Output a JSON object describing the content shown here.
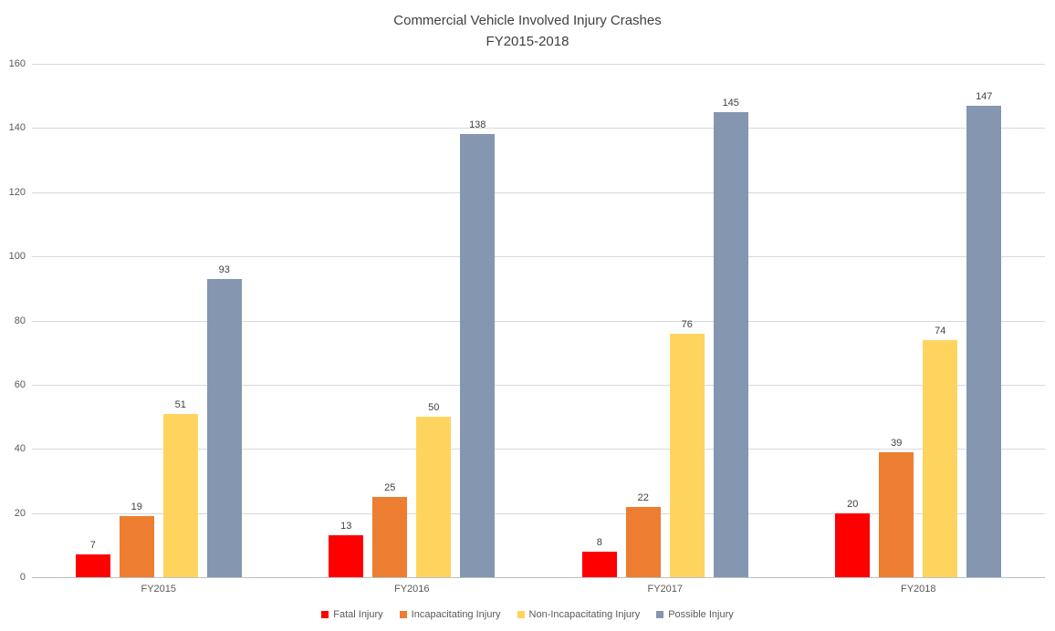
{
  "title": {
    "line1": "Commercial Vehicle Involved Injury Crashes",
    "line2": "FY2015-2018"
  },
  "chart_data": {
    "type": "bar",
    "title": "Commercial Vehicle Involved Injury Crashes FY2015-2018",
    "categories": [
      "FY2015",
      "FY2016",
      "FY2017",
      "FY2018"
    ],
    "series": [
      {
        "name": "Fatal Injury",
        "color": "#FF0000",
        "values": [
          7,
          13,
          8,
          20
        ]
      },
      {
        "name": "Incapacitating Injury",
        "color": "#ED7D31",
        "values": [
          19,
          25,
          22,
          39
        ]
      },
      {
        "name": "Non-Incapacitating Injury",
        "color": "#FFD45E",
        "values": [
          51,
          50,
          76,
          74
        ]
      },
      {
        "name": "Possible Injury",
        "color": "#8496B0",
        "values": [
          93,
          138,
          145,
          147
        ]
      }
    ],
    "xlabel": "",
    "ylabel": "",
    "ylim": [
      0,
      160
    ],
    "ytick_step": 20,
    "grid": true,
    "data_labels": true,
    "legend_position": "bottom"
  }
}
